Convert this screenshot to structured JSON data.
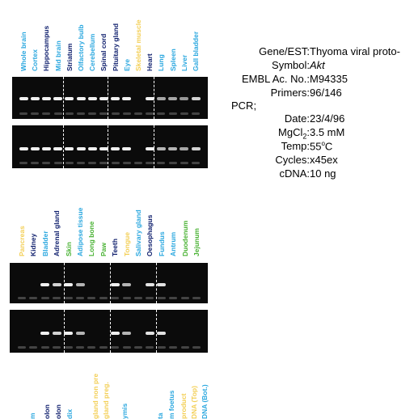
{
  "colors": {
    "light_blue": "#2aa7df",
    "navy": "#10206e",
    "green": "#49b233",
    "yellow": "#f3cf56"
  },
  "top_panel": {
    "lanes": [
      {
        "label": "Whole brain",
        "color": "light_blue",
        "bands": [
          1,
          1
        ]
      },
      {
        "label": "Cortex",
        "color": "light_blue",
        "bands": [
          1,
          1
        ]
      },
      {
        "label": "Hippocampus",
        "color": "navy",
        "bands": [
          1,
          1
        ]
      },
      {
        "label": "Mid brain",
        "color": "light_blue",
        "bands": [
          1,
          1
        ]
      },
      {
        "label": "Striatum",
        "color": "navy",
        "bands": [
          1,
          1
        ]
      },
      {
        "label": "Olfactory bulb",
        "color": "light_blue",
        "bands": [
          1,
          1
        ]
      },
      {
        "label": "Cerebellum",
        "color": "light_blue",
        "bands": [
          1,
          1
        ]
      },
      {
        "label": "Spinal cord",
        "color": "navy",
        "bands": [
          1,
          1
        ]
      },
      {
        "label": "Pituitary gland",
        "color": "navy",
        "bands": [
          1,
          1
        ]
      },
      {
        "label": "Eye",
        "color": "light_blue",
        "bands": [
          1,
          1
        ]
      },
      {
        "label": "Skeletal muscle",
        "color": "yellow",
        "bands": [
          0,
          0
        ]
      },
      {
        "label": "Heart",
        "color": "navy",
        "bands": [
          1,
          1
        ]
      },
      {
        "label": "Lung",
        "color": "light_blue",
        "bands": [
          0.5,
          0.6
        ]
      },
      {
        "label": "Spleen",
        "color": "light_blue",
        "bands": [
          0.5,
          0.6
        ]
      },
      {
        "label": "Liver",
        "color": "light_blue",
        "bands": [
          0.4,
          0.5
        ]
      },
      {
        "label": "Gall bladder",
        "color": "light_blue",
        "bands": [
          0.8,
          0.8
        ]
      }
    ]
  },
  "bottom_panel": {
    "lanes": [
      {
        "label": "Pancreas",
        "color": "yellow",
        "bands": [
          0,
          0
        ]
      },
      {
        "label": "Kidney",
        "color": "navy",
        "bands": [
          0,
          0
        ]
      },
      {
        "label": "Bladder",
        "color": "light_blue",
        "bands": [
          1,
          1
        ]
      },
      {
        "label": "Adrenal gland",
        "color": "navy",
        "bands": [
          0.8,
          0.8
        ]
      },
      {
        "label": "Skin",
        "color": "green",
        "bands": [
          1,
          1
        ]
      },
      {
        "label": "Adipose tissue",
        "color": "light_blue",
        "bands": [
          0.6,
          0.6
        ]
      },
      {
        "label": "Long bone",
        "color": "green",
        "bands": [
          0,
          0
        ]
      },
      {
        "label": "Paw",
        "color": "green",
        "bands": [
          0,
          0
        ]
      },
      {
        "label": "Teeth",
        "color": "navy",
        "bands": [
          1,
          1
        ]
      },
      {
        "label": "Tongue",
        "color": "yellow",
        "bands": [
          0.6,
          0.6
        ]
      },
      {
        "label": "Salivary gland",
        "color": "light_blue",
        "bands": [
          0,
          0
        ]
      },
      {
        "label": "Oesophagus",
        "color": "navy",
        "bands": [
          0.9,
          0.9
        ]
      },
      {
        "label": "Fundus",
        "color": "light_blue",
        "bands": [
          0.9,
          0.9
        ]
      },
      {
        "label": "Antrum",
        "color": "light_blue",
        "bands": [
          0,
          0
        ]
      },
      {
        "label": "Duodenum",
        "color": "green",
        "bands": [
          0,
          0
        ]
      },
      {
        "label": "Jejunum",
        "color": "green",
        "bands": [
          0,
          0
        ]
      }
    ]
  },
  "partial_labels": [
    {
      "text": "m",
      "color": "light_blue"
    },
    {
      "text": "olon",
      "color": "navy"
    },
    {
      "text": "olon",
      "color": "navy"
    },
    {
      "text": "dix",
      "color": "light_blue"
    },
    {
      "text": "gland non pre",
      "color": "yellow"
    },
    {
      "text": "gland preg.",
      "color": "yellow"
    },
    {
      "text": "ymis",
      "color": "light_blue"
    },
    {
      "text": "ta",
      "color": "light_blue"
    },
    {
      "text": "m foetus",
      "color": "light_blue"
    },
    {
      "text": "product",
      "color": "yellow"
    },
    {
      "text": "DNA (Top)",
      "color": "yellow"
    },
    {
      "text": "DNA (Bot.)",
      "color": "light_blue"
    }
  ],
  "info": {
    "gene_label": "Gene/EST:",
    "gene_value": "Thyoma viral proto-",
    "symbol_label": "Symbol:",
    "symbol_value": "Akt",
    "embl_label": "EMBL Ac. No.:",
    "embl_value": "M94335",
    "primers_label": "Primers:",
    "primers_value": "96/146",
    "pcr_label": "PCR;",
    "date_label": "Date:",
    "date_value": "23/4/96",
    "mgcl_label_prefix": "MgCl",
    "mgcl_label_sub": "2",
    "mgcl_label_suffix": ":",
    "mgcl_value": "3.5 mM",
    "temp_label": "Temp:",
    "temp_value_num": "55",
    "temp_value_sup": "o",
    "temp_value_unit": "C",
    "cycles_label": "Cycles:",
    "cycles_value": "x45ex",
    "cdna_label": "cDNA:",
    "cdna_value": "10 ng"
  }
}
